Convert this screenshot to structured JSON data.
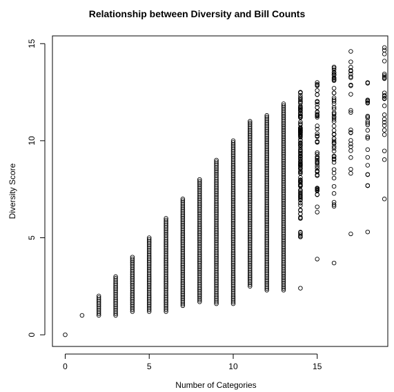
{
  "chart_data": {
    "type": "scatter",
    "title": "Relationship between Diversity and Bill Counts",
    "xlabel": "Number of Categories",
    "ylabel": "Diversity Score",
    "xlim": [
      -0.76,
      19.2
    ],
    "ylim": [
      -0.6,
      15.4
    ],
    "x_ticks": [
      0,
      5,
      10,
      15
    ],
    "y_ticks": [
      0,
      5,
      10,
      15
    ],
    "grid": false,
    "legend": "none",
    "marker": "open-circle",
    "color": "#000000",
    "columns": [
      {
        "x": 0,
        "min": 0.0,
        "max": 0.0,
        "density": "single"
      },
      {
        "x": 1,
        "min": 1.0,
        "max": 1.0,
        "density": "single"
      },
      {
        "x": 2,
        "min": 1.0,
        "max": 2.0,
        "density": "solid"
      },
      {
        "x": 3,
        "min": 1.0,
        "max": 3.0,
        "density": "solid"
      },
      {
        "x": 4,
        "min": 1.2,
        "max": 4.0,
        "density": "solid"
      },
      {
        "x": 5,
        "min": 1.2,
        "max": 5.0,
        "density": "solid"
      },
      {
        "x": 6,
        "min": 1.2,
        "max": 6.0,
        "density": "solid"
      },
      {
        "x": 7,
        "min": 1.5,
        "max": 7.0,
        "density": "solid"
      },
      {
        "x": 8,
        "min": 1.7,
        "max": 8.0,
        "density": "solid"
      },
      {
        "x": 9,
        "min": 1.6,
        "max": 9.0,
        "density": "solid"
      },
      {
        "x": 10,
        "min": 1.6,
        "max": 10.0,
        "density": "solid"
      },
      {
        "x": 11,
        "min": 2.5,
        "max": 11.0,
        "density": "solid"
      },
      {
        "x": 12,
        "min": 2.3,
        "max": 11.3,
        "density": "solid"
      },
      {
        "x": 13,
        "min": 2.3,
        "max": 11.9,
        "density": "solid"
      },
      {
        "x": 14,
        "min": 2.4,
        "max": 12.5,
        "density": "dense"
      },
      {
        "x": 15,
        "min": 3.9,
        "max": 13.0,
        "density": "medium"
      },
      {
        "x": 16,
        "min": 3.7,
        "max": 13.8,
        "density": "medium"
      },
      {
        "x": 17,
        "min": 5.2,
        "max": 14.6,
        "density": "sparse"
      },
      {
        "x": 18,
        "min": 5.3,
        "max": 13.0,
        "density": "sparse"
      },
      {
        "x": 19,
        "min": 7.0,
        "max": 14.8,
        "density": "sparse"
      }
    ]
  }
}
